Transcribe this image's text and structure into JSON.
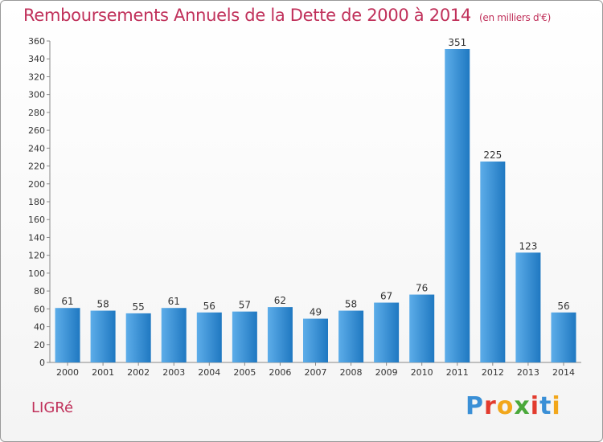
{
  "chart_data": {
    "type": "bar",
    "title": "Remboursements Annuels de la Dette de 2000 à 2014",
    "unit": "(en milliers d'€)",
    "categories": [
      "2000",
      "2001",
      "2002",
      "2003",
      "2004",
      "2005",
      "2006",
      "2007",
      "2008",
      "2009",
      "2010",
      "2011",
      "2012",
      "2013",
      "2014"
    ],
    "values": [
      61,
      58,
      55,
      61,
      56,
      57,
      62,
      49,
      58,
      67,
      76,
      351,
      225,
      123,
      56
    ],
    "ylim": [
      0,
      360
    ],
    "yticks": [
      0,
      20,
      40,
      60,
      80,
      100,
      120,
      140,
      160,
      180,
      200,
      220,
      240,
      260,
      280,
      300,
      320,
      340,
      360
    ],
    "xlabel": "",
    "ylabel": "",
    "grid": false,
    "colors": {
      "bar_light": "#5dade9",
      "bar_dark": "#1f78c1",
      "text": "#333333",
      "title": "#c0305a"
    }
  },
  "commune": "LIGRé",
  "logo": {
    "letters": [
      "P",
      "r",
      "o",
      "x",
      "i",
      "t",
      "i"
    ],
    "colors": [
      "#3a8fd6",
      "#e23b2e",
      "#f2a71b",
      "#4aa83a",
      "#e23b2e",
      "#3a8fd6",
      "#f2a71b"
    ]
  }
}
